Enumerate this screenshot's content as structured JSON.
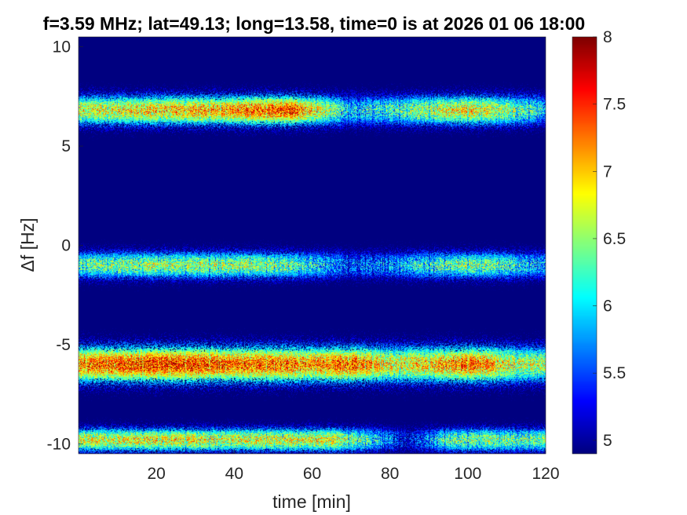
{
  "chart_data": {
    "type": "heatmap",
    "title": "f=3.59 MHz;  lat=49.13; long=13.58, time=0 is at 2026 01 06 18:00",
    "xlabel": "time [min]",
    "ylabel": "Δf [Hz]",
    "xlim": [
      0,
      120
    ],
    "ylim": [
      -10.5,
      10.5
    ],
    "x_ticks": [
      {
        "value": 20,
        "label": "20"
      },
      {
        "value": 40,
        "label": "40"
      },
      {
        "value": 60,
        "label": "60"
      },
      {
        "value": 80,
        "label": "80"
      },
      {
        "value": 100,
        "label": "100"
      },
      {
        "value": 120,
        "label": "120"
      }
    ],
    "y_ticks": [
      {
        "value": 10,
        "label": "10"
      },
      {
        "value": 5,
        "label": "5"
      },
      {
        "value": 0,
        "label": "0"
      },
      {
        "value": -5,
        "label": "-5"
      },
      {
        "value": -10,
        "label": "-10"
      }
    ],
    "colorbar": {
      "range": [
        4.9,
        8
      ],
      "colormap": "jet",
      "ticks": [
        {
          "value": 8,
          "label": "8"
        },
        {
          "value": 7.5,
          "label": "7.5"
        },
        {
          "value": 7,
          "label": "7"
        },
        {
          "value": 6.5,
          "label": "6.5"
        },
        {
          "value": 6,
          "label": "6"
        },
        {
          "value": 5.5,
          "label": "5.5"
        },
        {
          "value": 5,
          "label": "5"
        }
      ]
    },
    "background_value": 4.9,
    "bands": [
      {
        "center_hz": 6.8,
        "half_width_hz": 0.9,
        "profile": [
          [
            0,
            6.8
          ],
          [
            20,
            7.0
          ],
          [
            40,
            7.2
          ],
          [
            55,
            7.5
          ],
          [
            62,
            6.8
          ],
          [
            70,
            6.0
          ],
          [
            80,
            6.3
          ],
          [
            90,
            6.6
          ],
          [
            100,
            7.0
          ],
          [
            110,
            6.6
          ],
          [
            118,
            6.2
          ],
          [
            120,
            5.6
          ]
        ]
      },
      {
        "center_hz": -1.0,
        "half_width_hz": 0.8,
        "profile": [
          [
            0,
            6.4
          ],
          [
            20,
            6.6
          ],
          [
            40,
            6.6
          ],
          [
            55,
            6.4
          ],
          [
            62,
            6.0
          ],
          [
            70,
            5.6
          ],
          [
            80,
            5.8
          ],
          [
            90,
            6.2
          ],
          [
            100,
            6.5
          ],
          [
            110,
            6.3
          ],
          [
            120,
            5.8
          ]
        ]
      },
      {
        "center_hz": -6.0,
        "half_width_hz": 1.1,
        "profile": [
          [
            0,
            7.3
          ],
          [
            20,
            7.6
          ],
          [
            40,
            7.4
          ],
          [
            55,
            7.3
          ],
          [
            62,
            7.2
          ],
          [
            70,
            7.5
          ],
          [
            80,
            6.9
          ],
          [
            90,
            7.0
          ],
          [
            100,
            7.4
          ],
          [
            110,
            6.9
          ],
          [
            120,
            6.6
          ]
        ]
      },
      {
        "center_hz": -9.8,
        "half_width_hz": 0.7,
        "profile": [
          [
            0,
            6.8
          ],
          [
            20,
            6.9
          ],
          [
            40,
            6.8
          ],
          [
            55,
            6.8
          ],
          [
            65,
            6.9
          ],
          [
            75,
            6.2
          ],
          [
            85,
            5.2
          ],
          [
            95,
            6.4
          ],
          [
            105,
            6.5
          ],
          [
            120,
            6.4
          ]
        ]
      }
    ]
  }
}
